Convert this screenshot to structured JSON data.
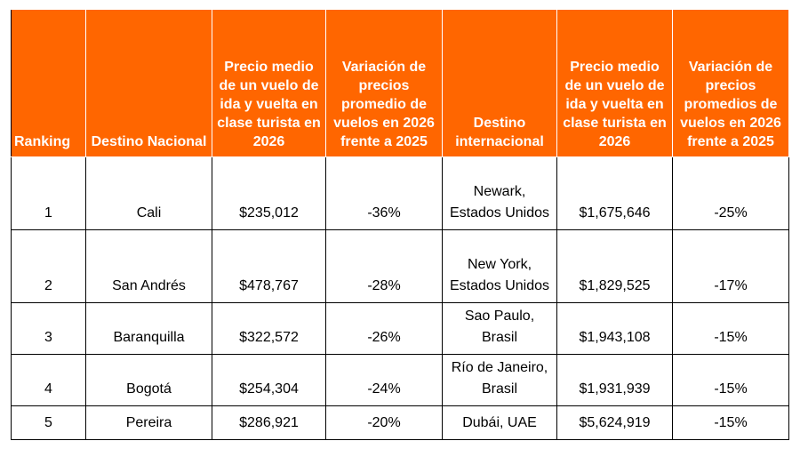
{
  "table": {
    "header": [
      "Ranking",
      "Destino Nacional",
      "Precio medio de un vuelo de ida y vuelta en clase turista en 2026",
      "Variación de precios promedio de vuelos en 2026 frente a 2025",
      "Destino internacional",
      "Precio medio de un vuelo de ida y vuelta en clase turista en 2026",
      "Variación de precios promedios de vuelos en 2026 frente a 2025"
    ],
    "rows": [
      [
        "1",
        "Cali",
        "$235,012",
        "-36%",
        "Newark, Estados Unidos",
        "$1,675,646",
        "-25%"
      ],
      [
        "2",
        "San Andrés",
        "$478,767",
        "-28%",
        "New York, Estados Unidos",
        "$1,829,525",
        "-17%"
      ],
      [
        "3",
        "Baranquilla",
        "$322,572",
        "-26%",
        "Sao Paulo, Brasil",
        "$1,943,108",
        "-15%"
      ],
      [
        "4",
        "Bogotá",
        "$254,304",
        "-24%",
        "Río de Janeiro, Brasil",
        "$1,931,939",
        "-15%"
      ],
      [
        "5",
        "Pereira",
        "$286,921",
        "-20%",
        "Dubái, UAE",
        "$5,624,919",
        "-15%"
      ]
    ]
  }
}
